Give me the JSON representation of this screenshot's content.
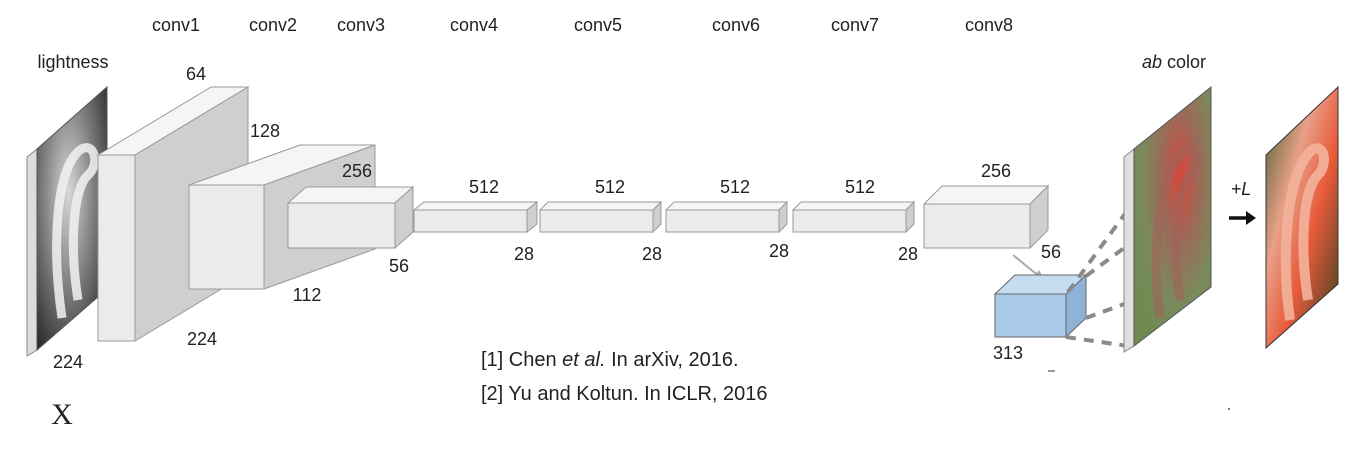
{
  "input": {
    "label": "lightness",
    "size": "224",
    "symbol": "X"
  },
  "layers": [
    {
      "name": "conv1",
      "channels": "64",
      "spatial": "224"
    },
    {
      "name": "conv2",
      "channels": "128",
      "spatial": "112"
    },
    {
      "name": "conv3",
      "channels": "256",
      "spatial": "56"
    },
    {
      "name": "conv4",
      "channels": "512",
      "spatial": "28"
    },
    {
      "name": "conv5",
      "channels": "512",
      "spatial": "28"
    },
    {
      "name": "conv6",
      "channels": "512",
      "spatial": "28"
    },
    {
      "name": "conv7",
      "channels": "512",
      "spatial": "28"
    },
    {
      "name": "conv8",
      "channels": "256",
      "spatial": "56"
    }
  ],
  "output_block": {
    "size": "313"
  },
  "output": {
    "label_italic": "ab",
    "label_rest": " color",
    "combine_label": "+L"
  },
  "citations": [
    {
      "pre": "[1] Chen ",
      "italic": "et al.",
      "post": " In arXiv, 2016."
    },
    {
      "pre": "[2] Yu and Koltun. In ICLR, 2016",
      "italic": "",
      "post": ""
    }
  ],
  "colors": {
    "block_front": "#ebebeb",
    "block_top": "#f5f5f5",
    "block_side": "#cfcfcf",
    "output_block": "#a9c9e9",
    "dash": "#8a8a8a"
  }
}
